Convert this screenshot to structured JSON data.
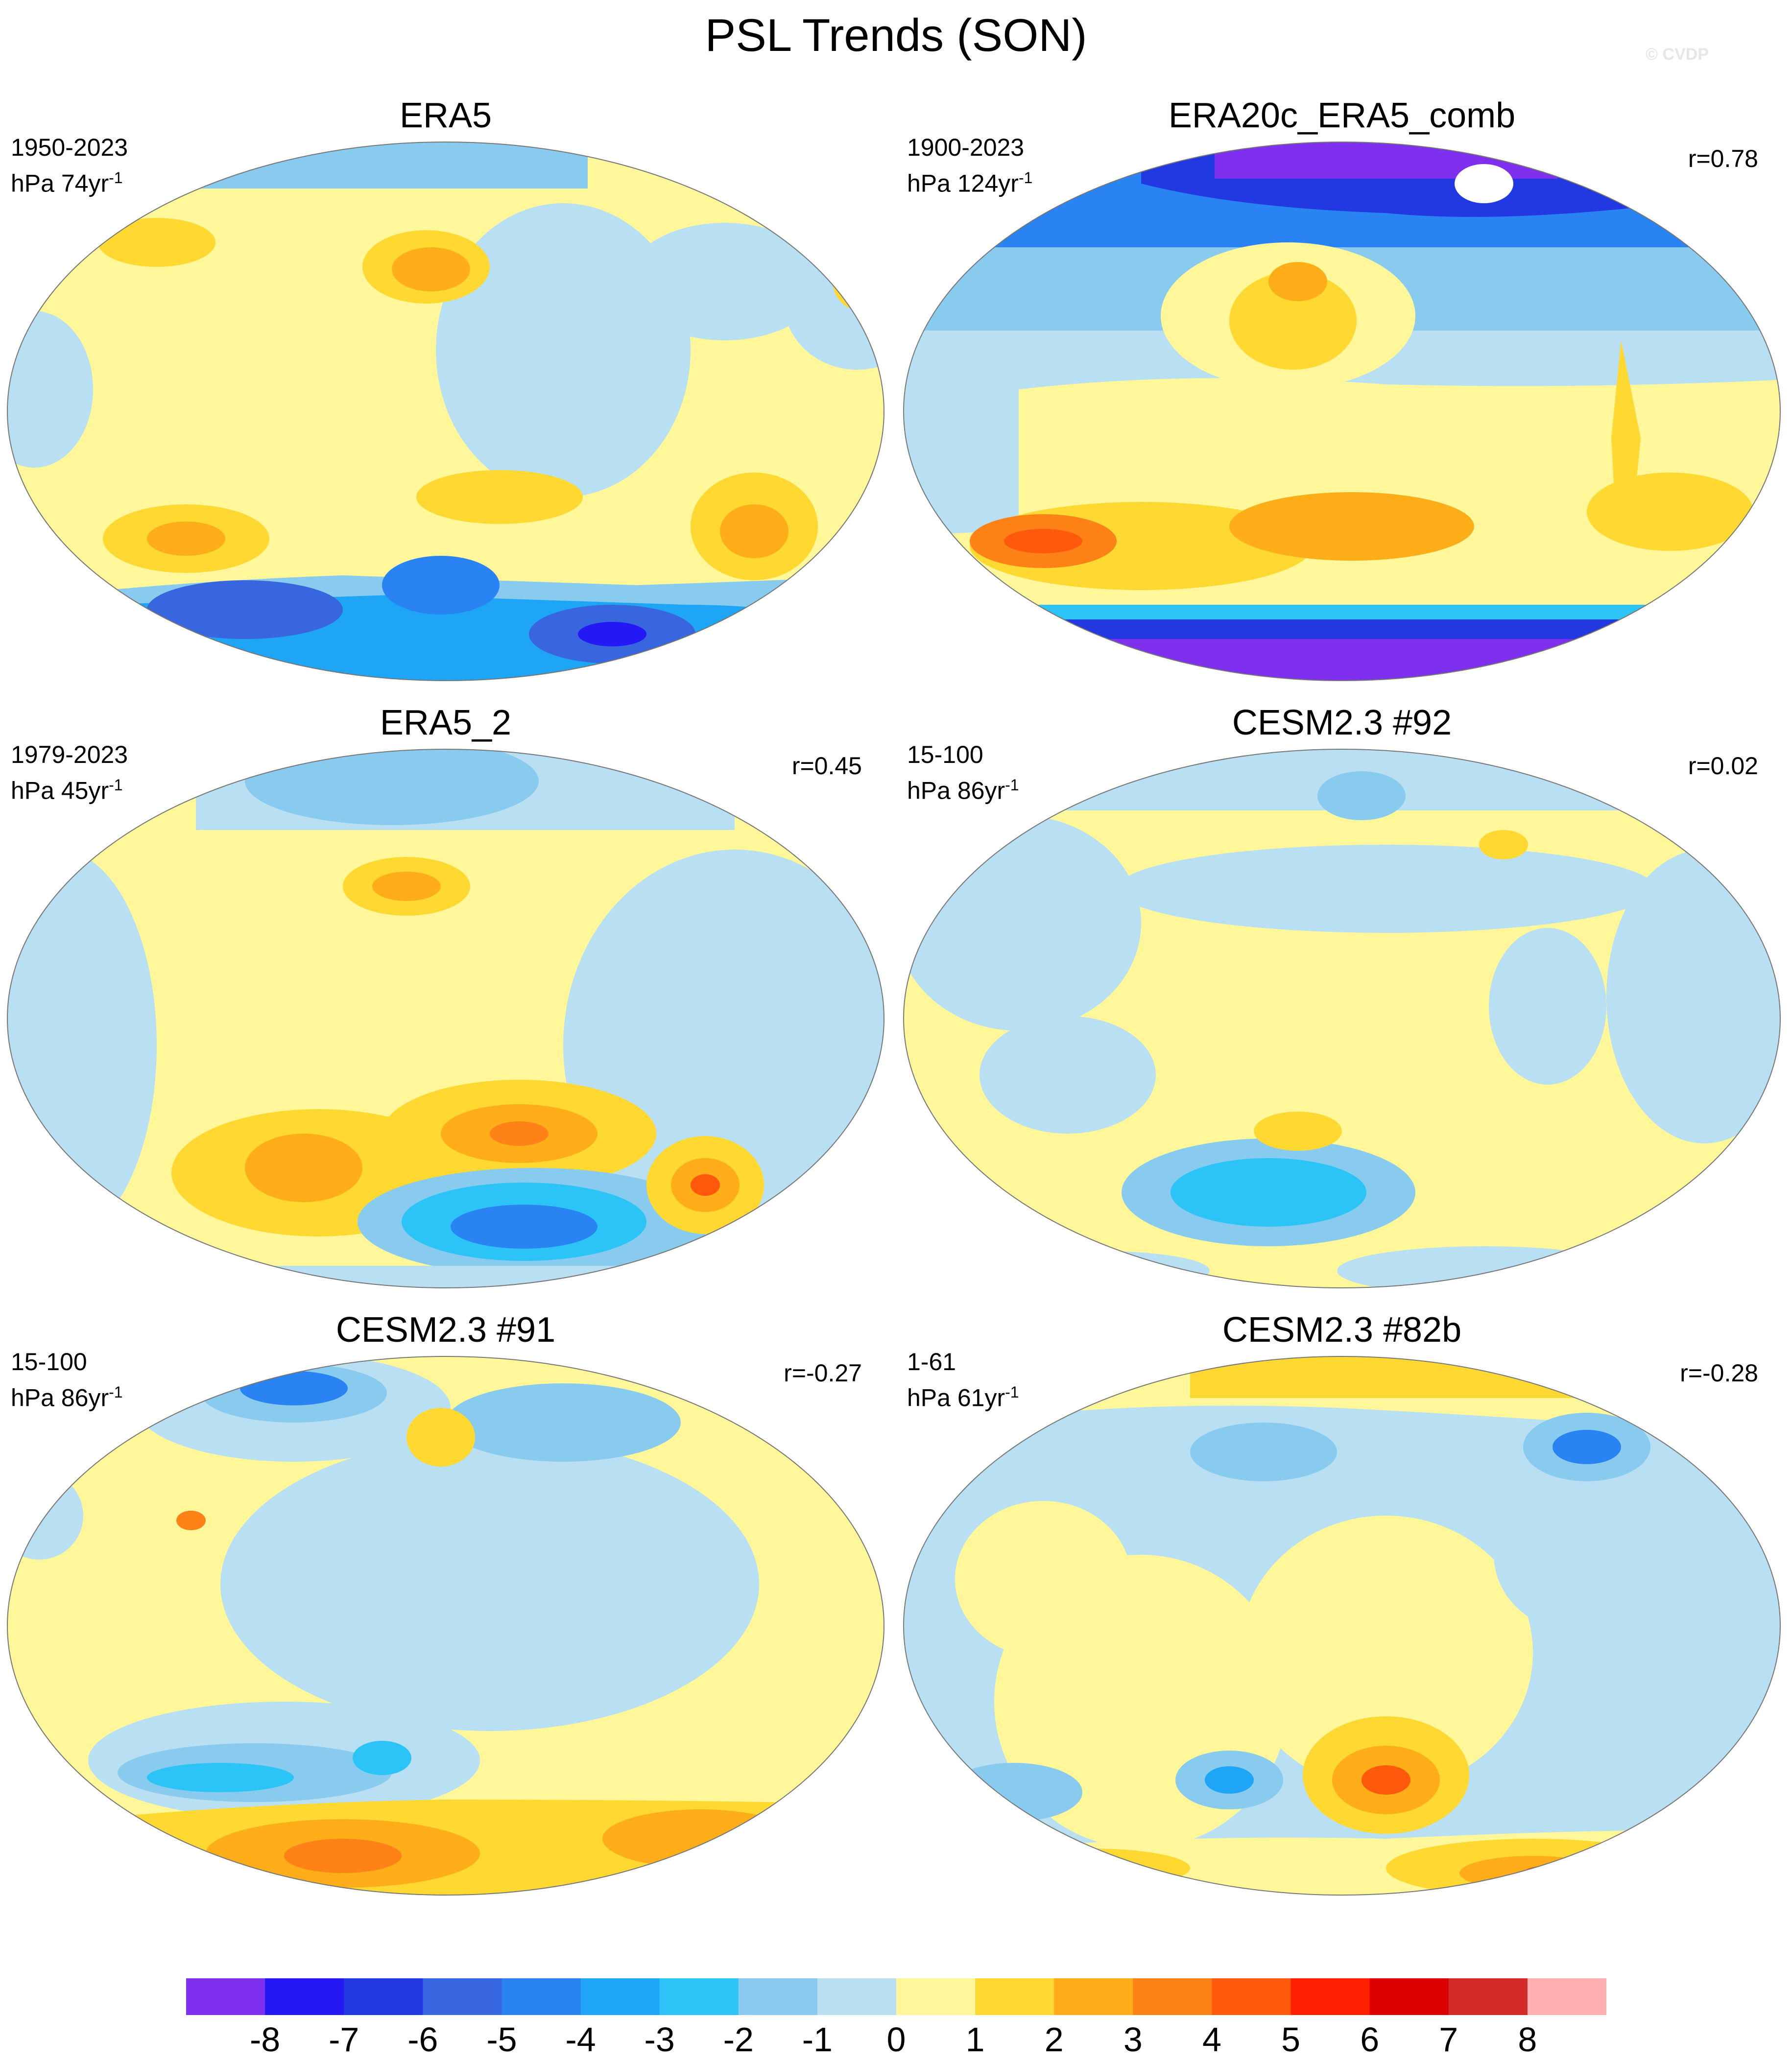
{
  "figure": {
    "title": "PSL Trends (SON)",
    "credit": "© CVDP"
  },
  "panels": [
    {
      "id": "era5",
      "title": "ERA5",
      "period": "1950-2023",
      "units_prefix": "hPa 74yr",
      "units_exp": "-1",
      "r": ""
    },
    {
      "id": "era20c",
      "title": "ERA20c_ERA5_comb",
      "period": "1900-2023",
      "units_prefix": "hPa 124yr",
      "units_exp": "-1",
      "r": "r=0.78"
    },
    {
      "id": "era5_2",
      "title": "ERA5_2",
      "period": "1979-2023",
      "units_prefix": "hPa 45yr",
      "units_exp": "-1",
      "r": "r=0.45"
    },
    {
      "id": "cesm92",
      "title": "CESM2.3 #92",
      "period": "15-100",
      "units_prefix": "hPa 86yr",
      "units_exp": "-1",
      "r": "r=0.02"
    },
    {
      "id": "cesm91",
      "title": "CESM2.3 #91",
      "period": "15-100",
      "units_prefix": "hPa 86yr",
      "units_exp": "-1",
      "r": "r=-0.27"
    },
    {
      "id": "cesm82b",
      "title": "CESM2.3 #82b",
      "period": "1-61",
      "units_prefix": "hPa 61yr",
      "units_exp": "-1",
      "r": "r=-0.28"
    }
  ],
  "colorbar": {
    "colors": [
      "#7e30ee",
      "#2419f5",
      "#2238e0",
      "#3866de",
      "#2983f2",
      "#1fa5f5",
      "#2cc4f7",
      "#88cbee",
      "#b9dff2",
      "#fff79a",
      "#ffd931",
      "#ffae19",
      "#ff8217",
      "#ff5a0c",
      "#ff1e00",
      "#dd0000",
      "#d32a2a",
      "#ffb1b1"
    ],
    "tick_labels": [
      "-8",
      "-7",
      "-6",
      "-5",
      "-4",
      "-3",
      "-2",
      "-1",
      "0",
      "1",
      "2",
      "3",
      "4",
      "5",
      "6",
      "7",
      "8"
    ]
  }
}
